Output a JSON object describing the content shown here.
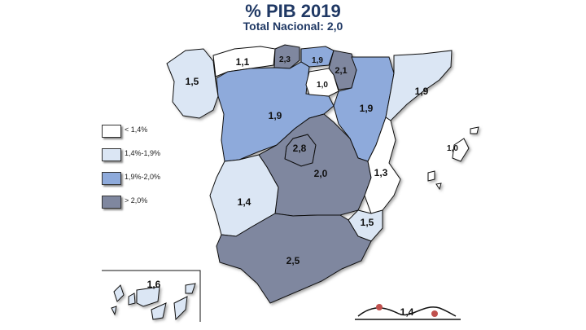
{
  "title": "% PIB 2019",
  "subtitle": "Total Nacional: 2,0",
  "colors": {
    "lt_1_4": "#ffffff",
    "r1_4_1_9": "#dbe6f4",
    "r1_9_2_0": "#8eaadb",
    "gt_2_0": "#7f879f",
    "border": "#111111"
  },
  "legend": [
    {
      "label": "< 1,4%",
      "color": "#ffffff"
    },
    {
      "label": "1,4%-1,9%",
      "color": "#dbe6f4"
    },
    {
      "label": "1,9%-2,0%",
      "color": "#8eaadb"
    },
    {
      "label": "> 2,0%",
      "color": "#7f879f"
    }
  ],
  "regions": {
    "galicia": "1,5",
    "asturias": "1,1",
    "cantabria": "2,3",
    "pais_vasco": "1,9",
    "navarra": "2,1",
    "la_rioja": "1,0",
    "aragon": "1,9",
    "cataluna": "1,9",
    "castilla_leon": "1,9",
    "madrid": "2,8",
    "castilla_la_mancha": "2,0",
    "extremadura": "1,4",
    "comunidad_valenciana": "1,3",
    "baleares": "1,0",
    "murcia": "1,5",
    "andalucia": "2,5",
    "canarias": "1,6",
    "ceuta_melilla": "1,4"
  }
}
